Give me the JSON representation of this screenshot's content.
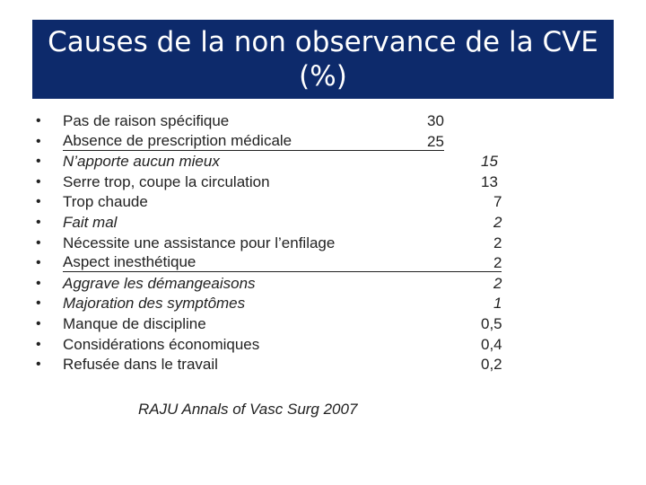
{
  "slide": {
    "title_line1": "Causes de la non observance de la CVE",
    "title_line2": "(%)",
    "items": [
      {
        "label": "Pas de raison spécifique",
        "value": "30",
        "italic": false,
        "underline": false,
        "col": "a"
      },
      {
        "label": "Absence de prescription médicale",
        "value": "25",
        "italic": false,
        "underline": true,
        "col": "a"
      },
      {
        "label": "N’apporte aucun mieux",
        "value": "15",
        "italic": true,
        "underline": false,
        "col": "b"
      },
      {
        "label": "Serre trop, coupe la circulation",
        "value": "13",
        "italic": false,
        "underline": false,
        "col": "b"
      },
      {
        "label": "Trop chaude",
        "value": "7",
        "italic": false,
        "underline": false,
        "col": "c"
      },
      {
        "label": "Fait mal",
        "value": "2",
        "italic": true,
        "underline": false,
        "col": "c"
      },
      {
        "label": "Nécessite une assistance pour l’enfilage",
        "value": "2",
        "italic": false,
        "underline": false,
        "col": "c"
      },
      {
        "label": "Aspect inesthétique",
        "value": "2",
        "italic": false,
        "underline": true,
        "col": "c"
      },
      {
        "label": "Aggrave les démangeaisons",
        "value": "2",
        "italic": true,
        "underline": false,
        "col": "c"
      },
      {
        "label": "Majoration des symptômes",
        "value": "1",
        "italic": true,
        "underline": false,
        "col": "c"
      },
      {
        "label": "Manque de discipline",
        "value": "0,5",
        "italic": false,
        "underline": false,
        "col": "b"
      },
      {
        "label": "Considérations économiques",
        "value": "0,4",
        "italic": false,
        "underline": false,
        "col": "b"
      },
      {
        "label": "Refusée dans le travail",
        "value": "0,2",
        "italic": false,
        "underline": false,
        "col": "b"
      }
    ],
    "source": "RAJU Annals of Vasc Surg 2007",
    "colors": {
      "title_bg": "#0d2a6b",
      "title_text": "#ffffff",
      "body_text": "#222222"
    }
  }
}
